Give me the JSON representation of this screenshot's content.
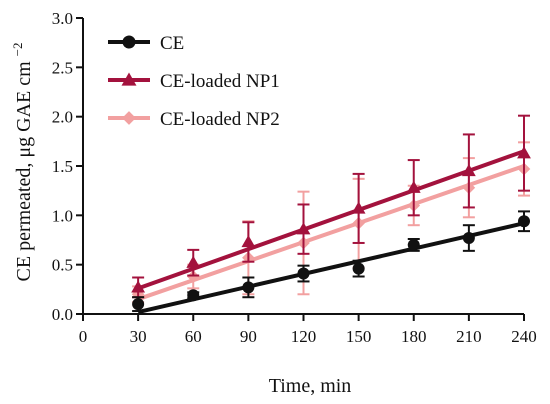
{
  "chart_data": {
    "type": "line",
    "xlabel": "Time, min",
    "ylabel_main": "CE permeated, μg GAE cm",
    "ylabel_sup": "−2",
    "xlim": [
      0,
      240
    ],
    "ylim": [
      0,
      3.0
    ],
    "x_ticks": [
      0,
      30,
      60,
      90,
      120,
      150,
      180,
      210,
      240
    ],
    "y_ticks": [
      0.0,
      0.5,
      1.0,
      1.5,
      2.0,
      2.5,
      3.0
    ],
    "y_tick_labels": [
      "0.0",
      "0.5",
      "1.0",
      "1.5",
      "2.0",
      "2.5",
      "3.0"
    ],
    "x_tick_labels": [
      "0",
      "30",
      "60",
      "90",
      "120",
      "150",
      "180",
      "210",
      "240"
    ],
    "legend_position": "top-left",
    "grid": false,
    "series": [
      {
        "name": "CE",
        "color": "#111111",
        "marker": "circle",
        "x": [
          30,
          60,
          90,
          120,
          150,
          180,
          210,
          240
        ],
        "y": [
          0.1,
          0.19,
          0.27,
          0.41,
          0.46,
          0.7,
          0.77,
          0.94
        ],
        "err": [
          0.07,
          0.03,
          0.1,
          0.08,
          0.08,
          0.06,
          0.13,
          0.1
        ],
        "fit": [
          [
            30,
            0.02
          ],
          [
            240,
            0.92
          ]
        ]
      },
      {
        "name": "CE-loaded NP1",
        "color": "#a3123d",
        "marker": "triangle",
        "x": [
          30,
          60,
          90,
          120,
          150,
          180,
          210,
          240
        ],
        "y": [
          0.27,
          0.52,
          0.73,
          0.86,
          1.07,
          1.28,
          1.45,
          1.63
        ],
        "err": [
          0.1,
          0.13,
          0.2,
          0.25,
          0.35,
          0.28,
          0.37,
          0.38
        ],
        "fit": [
          [
            30,
            0.26
          ],
          [
            240,
            1.65
          ]
        ]
      },
      {
        "name": "CE-loaded NP2",
        "color": "#f2a0a0",
        "marker": "diamond",
        "x": [
          30,
          60,
          90,
          120,
          150,
          180,
          210,
          240
        ],
        "y": [
          0.2,
          0.38,
          0.57,
          0.72,
          0.92,
          1.1,
          1.28,
          1.47
        ],
        "err": [
          0.08,
          0.12,
          0.37,
          0.52,
          0.45,
          0.2,
          0.3,
          0.27
        ],
        "fit": [
          [
            30,
            0.15
          ],
          [
            240,
            1.5
          ]
        ]
      }
    ]
  }
}
